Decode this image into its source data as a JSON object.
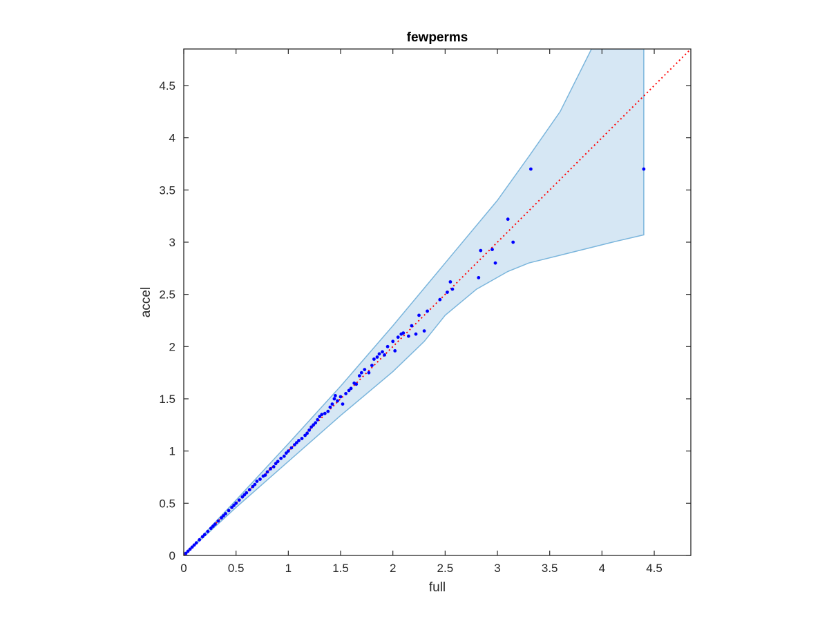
{
  "chart_data": {
    "type": "scatter",
    "title": "fewperms",
    "xlabel": "full",
    "ylabel": "accel",
    "xlim": [
      0,
      4.85
    ],
    "ylim": [
      0,
      4.85
    ],
    "xticks": [
      "0",
      "0.5",
      "1",
      "1.5",
      "2",
      "2.5",
      "3",
      "3.5",
      "4",
      "4.5"
    ],
    "yticks": [
      "0",
      "0.5",
      "1",
      "1.5",
      "2",
      "2.5",
      "3",
      "3.5",
      "4",
      "4.5"
    ],
    "tick_values": [
      0,
      0.5,
      1,
      1.5,
      2,
      2.5,
      3,
      3.5,
      4,
      4.5
    ],
    "grid": false,
    "colors": {
      "points": "#0000ff",
      "reference_line": "#ff0000",
      "band_fill": "#d6e7f4",
      "band_edge": "#7ab5dc",
      "axes": "#262626"
    },
    "reference_line": {
      "style": "dotted",
      "from": [
        0,
        0
      ],
      "to": [
        4.85,
        4.85
      ]
    },
    "band": {
      "upper": [
        [
          0,
          0
        ],
        [
          0.5,
          0.53
        ],
        [
          1,
          1.07
        ],
        [
          1.5,
          1.62
        ],
        [
          2,
          2.2
        ],
        [
          2.5,
          2.8
        ],
        [
          3,
          3.4
        ],
        [
          3.3,
          3.82
        ],
        [
          3.6,
          4.25
        ],
        [
          3.9,
          4.85
        ],
        [
          4.4,
          4.85
        ]
      ],
      "lower": [
        [
          0,
          0
        ],
        [
          0.5,
          0.46
        ],
        [
          1,
          0.9
        ],
        [
          1.5,
          1.34
        ],
        [
          2,
          1.76
        ],
        [
          2.3,
          2.05
        ],
        [
          2.5,
          2.3
        ],
        [
          2.8,
          2.55
        ],
        [
          3.1,
          2.72
        ],
        [
          3.3,
          2.8
        ],
        [
          3.7,
          2.9
        ],
        [
          4.1,
          3.0
        ],
        [
          4.4,
          3.07
        ]
      ]
    },
    "points": {
      "x": [
        0.02,
        0.04,
        0.06,
        0.08,
        0.1,
        0.12,
        0.15,
        0.18,
        0.2,
        0.23,
        0.26,
        0.28,
        0.3,
        0.33,
        0.36,
        0.38,
        0.4,
        0.43,
        0.46,
        0.48,
        0.5,
        0.53,
        0.56,
        0.58,
        0.6,
        0.63,
        0.66,
        0.68,
        0.7,
        0.73,
        0.76,
        0.78,
        0.8,
        0.83,
        0.86,
        0.88,
        0.9,
        0.93,
        0.96,
        0.98,
        1.0,
        1.03,
        1.06,
        1.08,
        1.1,
        1.13,
        1.16,
        1.18,
        1.2,
        1.22,
        1.24,
        1.26,
        1.28,
        1.3,
        1.32,
        1.35,
        1.38,
        1.4,
        1.42,
        1.44,
        1.45,
        1.47,
        1.5,
        1.52,
        1.55,
        1.58,
        1.6,
        1.63,
        1.65,
        1.68,
        1.7,
        1.73,
        1.77,
        1.8,
        1.82,
        1.85,
        1.87,
        1.9,
        1.92,
        1.95,
        2.0,
        2.02,
        2.05,
        2.08,
        2.1,
        2.15,
        2.18,
        2.22,
        2.25,
        2.3,
        2.33,
        2.45,
        2.52,
        2.55,
        2.57,
        2.82,
        2.84,
        2.95,
        2.98,
        3.1,
        3.15,
        3.32,
        4.4
      ],
      "y": [
        0.02,
        0.04,
        0.06,
        0.08,
        0.1,
        0.12,
        0.15,
        0.18,
        0.2,
        0.23,
        0.26,
        0.28,
        0.3,
        0.33,
        0.36,
        0.38,
        0.4,
        0.43,
        0.46,
        0.48,
        0.5,
        0.53,
        0.56,
        0.58,
        0.6,
        0.63,
        0.66,
        0.68,
        0.71,
        0.73,
        0.76,
        0.77,
        0.8,
        0.83,
        0.85,
        0.88,
        0.9,
        0.93,
        0.95,
        0.98,
        1.0,
        1.03,
        1.06,
        1.08,
        1.1,
        1.12,
        1.15,
        1.17,
        1.2,
        1.23,
        1.25,
        1.27,
        1.3,
        1.33,
        1.35,
        1.36,
        1.38,
        1.42,
        1.45,
        1.5,
        1.53,
        1.48,
        1.52,
        1.45,
        1.55,
        1.58,
        1.6,
        1.65,
        1.64,
        1.72,
        1.75,
        1.78,
        1.75,
        1.82,
        1.88,
        1.9,
        1.93,
        1.95,
        1.92,
        2.0,
        2.05,
        1.96,
        2.09,
        2.12,
        2.13,
        2.1,
        2.2,
        2.12,
        2.3,
        2.15,
        2.34,
        2.45,
        2.52,
        2.62,
        2.55,
        2.66,
        2.92,
        2.93,
        2.8,
        3.22,
        3.0,
        3.7,
        3.7
      ]
    }
  }
}
